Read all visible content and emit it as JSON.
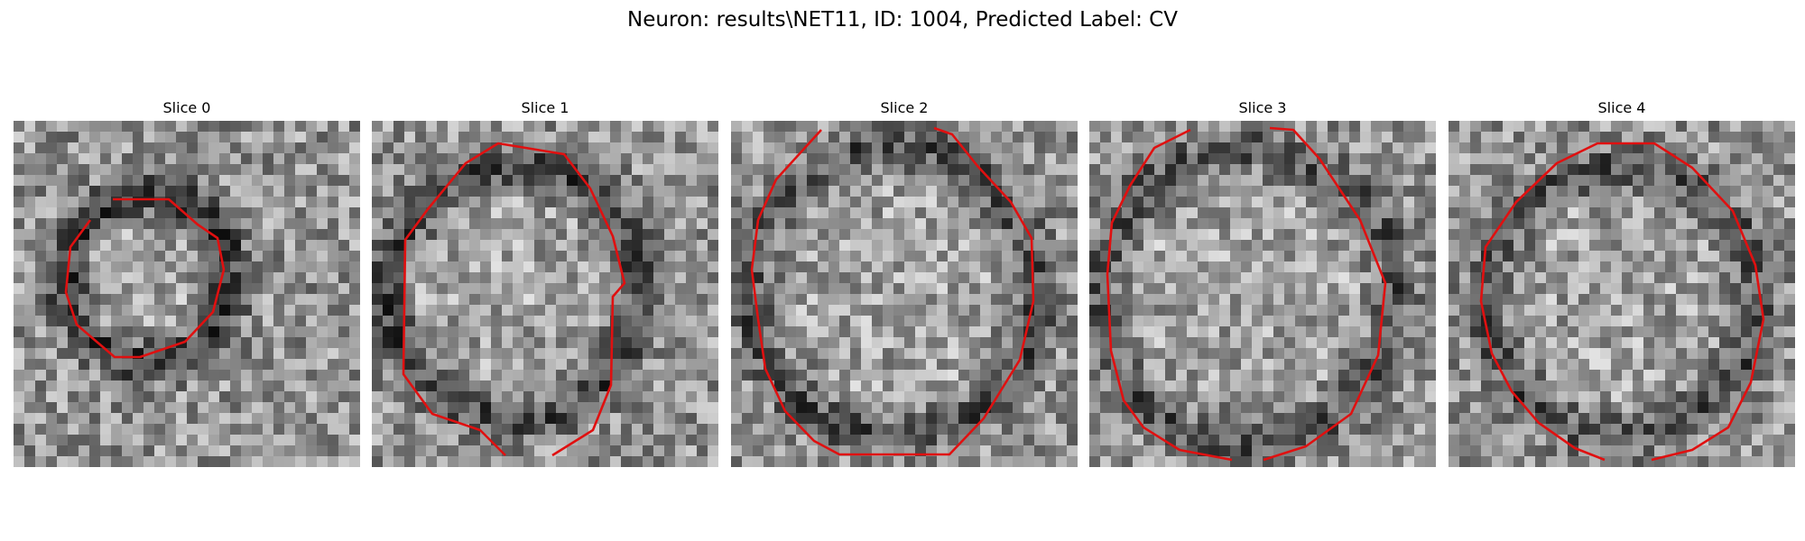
{
  "figure": {
    "title": "Neuron: results\\NET11, ID: 1004, Predicted Label: CV"
  },
  "panels": [
    {
      "title": "Slice 0"
    },
    {
      "title": "Slice 1"
    },
    {
      "title": "Slice 2"
    },
    {
      "title": "Slice 3"
    },
    {
      "title": "Slice 4"
    }
  ],
  "colors": {
    "contour": "#e01010",
    "background": "#ffffff"
  }
}
